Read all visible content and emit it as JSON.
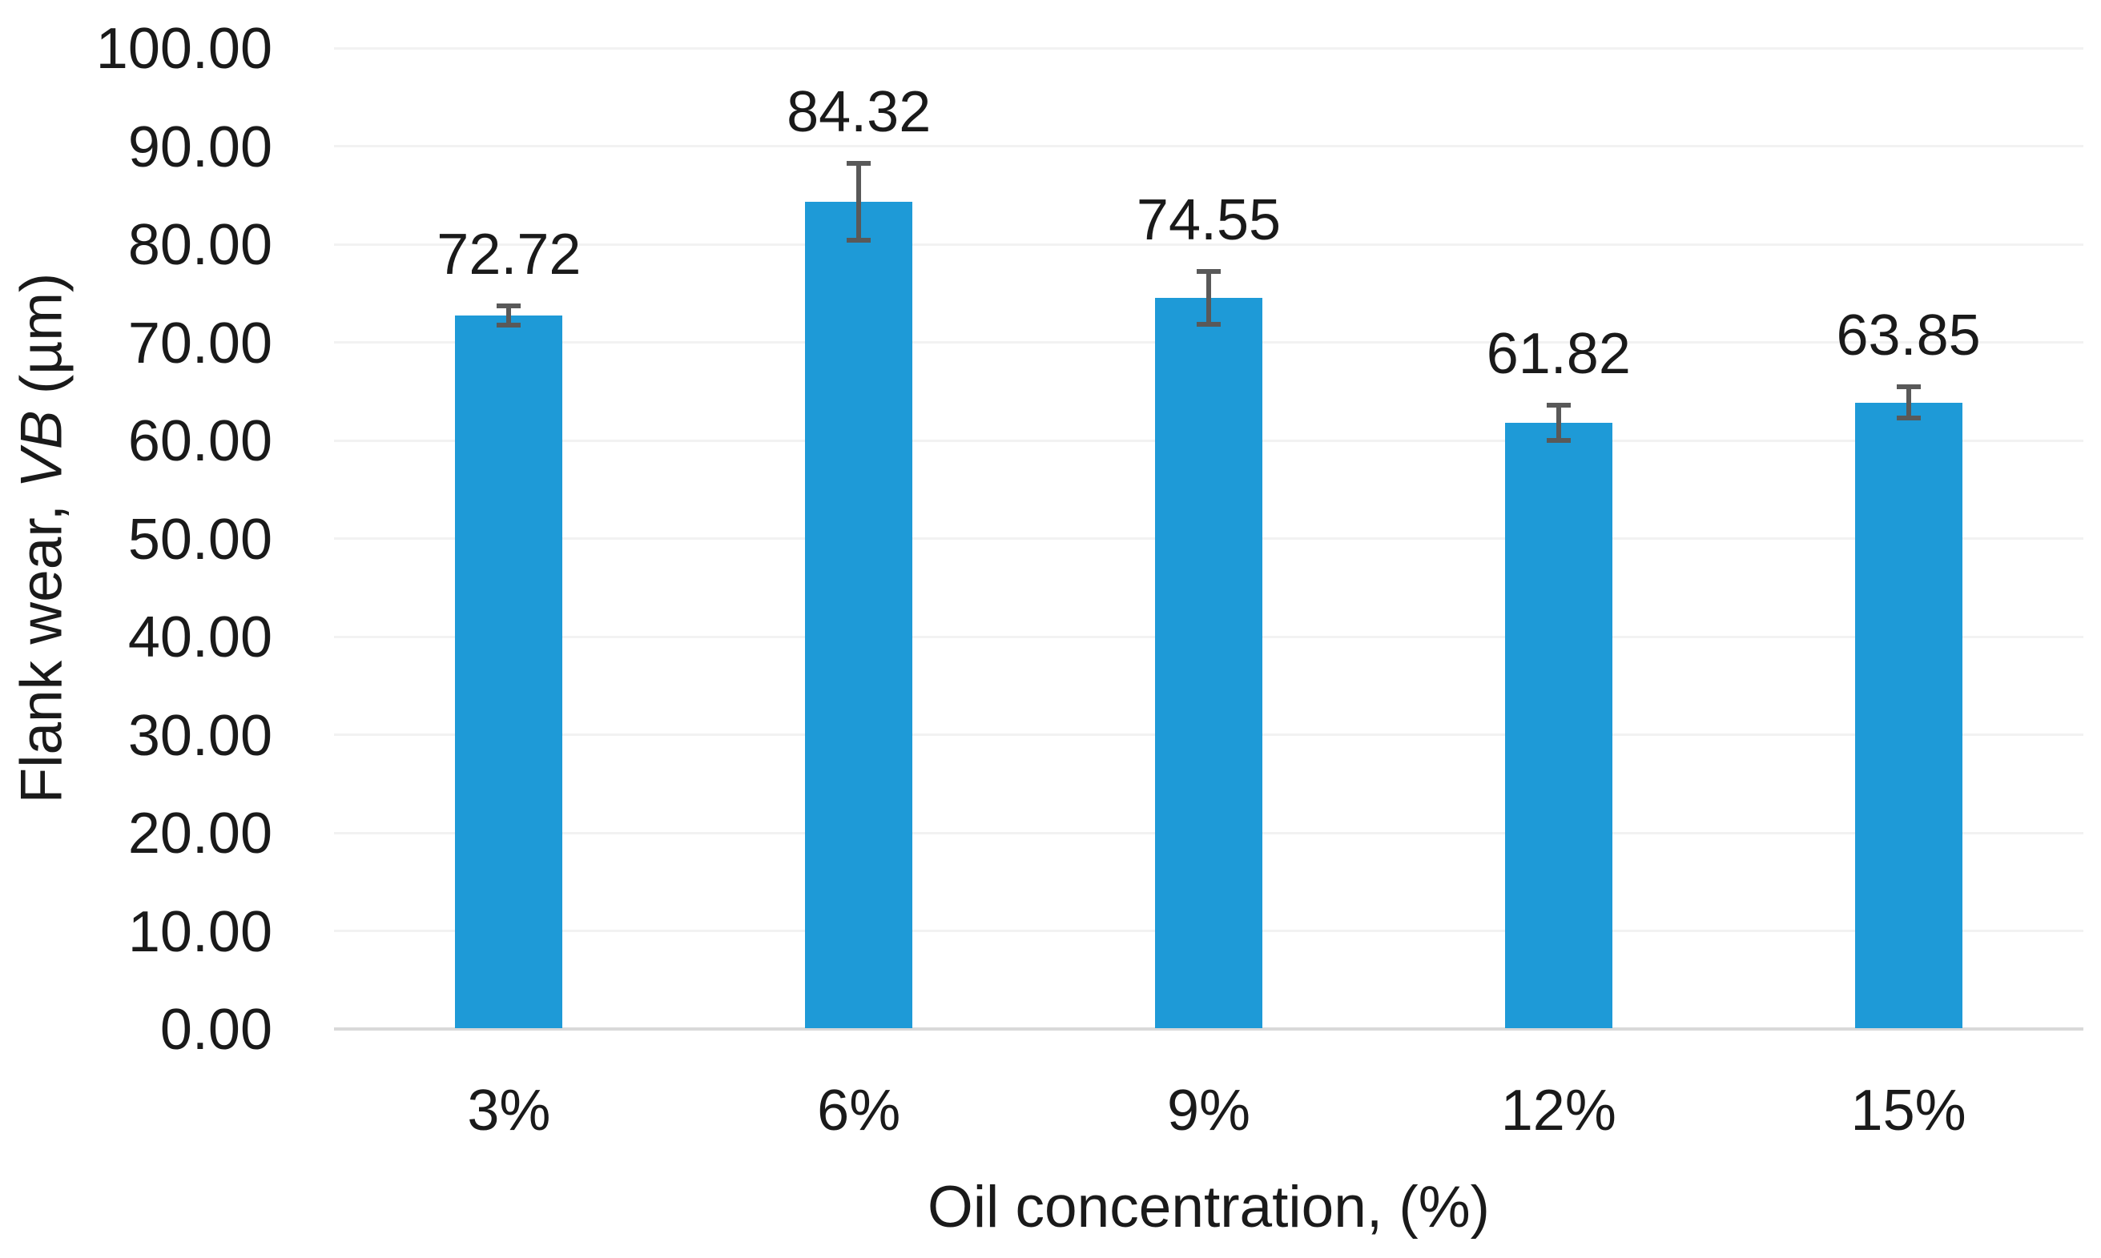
{
  "chart_data": {
    "type": "bar",
    "title": "",
    "categories": [
      "3%",
      "6%",
      "9%",
      "12%",
      "15%"
    ],
    "values": [
      72.72,
      84.32,
      74.55,
      61.82,
      63.85
    ],
    "data_labels": [
      "72.72",
      "84.32",
      "74.55",
      "61.82",
      "63.85"
    ],
    "error_bars": [
      1.0,
      3.9,
      2.7,
      1.8,
      1.6
    ],
    "xlabel": "Oil concentration, (%)",
    "ylabel": {
      "text_before_italic": "Flank wear, ",
      "italic": "VB",
      "text_after_italic": " (µm)"
    },
    "ylim": [
      0,
      100
    ],
    "ytick_step": 10,
    "ytick_labels": [
      "0.00",
      "10.00",
      "20.00",
      "30.00",
      "40.00",
      "50.00",
      "60.00",
      "70.00",
      "80.00",
      "90.00",
      "100.00"
    ],
    "grid": true,
    "legend": false,
    "colors": {
      "bar": "#1E9AD7",
      "error_bar": "#595959",
      "gridline": "#F2F2F2",
      "axis_line": "#D9D9D9",
      "text": "#1A1A1A"
    }
  }
}
